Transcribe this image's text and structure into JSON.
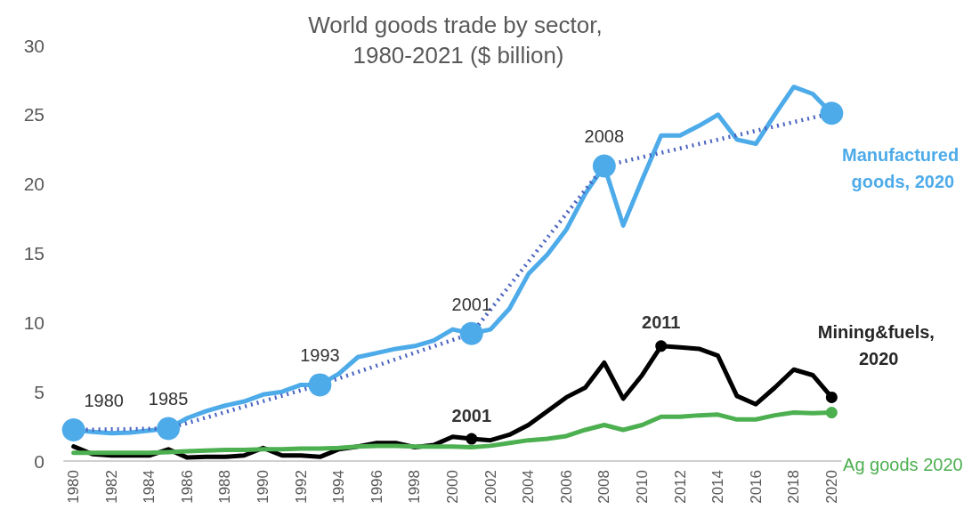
{
  "chart_data": {
    "type": "line",
    "title": "World goods trade by sector, 1980-2021 ($ billion)",
    "x": [
      1980,
      1981,
      1982,
      1983,
      1984,
      1985,
      1986,
      1987,
      1988,
      1989,
      1990,
      1991,
      1992,
      1993,
      1994,
      1995,
      1996,
      1997,
      1998,
      1999,
      2000,
      2001,
      2002,
      2003,
      2004,
      2005,
      2006,
      2007,
      2008,
      2009,
      2010,
      2011,
      2012,
      2013,
      2014,
      2015,
      2016,
      2017,
      2018,
      2019,
      2020
    ],
    "xlim": [
      1979.5,
      2020.5
    ],
    "xticks": [
      1980,
      1982,
      1984,
      1986,
      1988,
      1990,
      1992,
      1994,
      1996,
      1998,
      2000,
      2002,
      2004,
      2006,
      2008,
      2010,
      2012,
      2014,
      2016,
      2018,
      2020
    ],
    "ylim": [
      0,
      30
    ],
    "yticks": [
      0,
      5,
      10,
      15,
      20,
      25,
      30
    ],
    "grid": false,
    "marker": "none",
    "line_style": "solid",
    "series": [
      {
        "color": "#4eabe9",
        "values": [
          2.25,
          2.1,
          2.0,
          2.05,
          2.2,
          2.35,
          3.1,
          3.6,
          4.0,
          4.3,
          4.8,
          5.0,
          5.5,
          5.5,
          6.3,
          7.5,
          7.8,
          8.1,
          8.3,
          8.7,
          9.5,
          9.2,
          9.5,
          11.0,
          13.5,
          14.9,
          16.7,
          19.3,
          21.3,
          17.0,
          20.3,
          23.5,
          23.5,
          24.2,
          25.0,
          23.2,
          22.9,
          25.0,
          27.0,
          26.5,
          25.1
        ]
      },
      {
        "color": "#000000",
        "values": [
          1.05,
          0.5,
          0.4,
          0.4,
          0.4,
          0.85,
          0.25,
          0.3,
          0.3,
          0.4,
          0.95,
          0.4,
          0.4,
          0.3,
          0.85,
          1.05,
          1.3,
          1.3,
          1.0,
          1.15,
          1.75,
          1.6,
          1.5,
          1.9,
          2.6,
          3.6,
          4.6,
          5.3,
          7.1,
          4.5,
          6.2,
          8.3,
          8.2,
          8.1,
          7.6,
          4.7,
          4.1,
          5.3,
          6.6,
          6.2,
          4.6
        ]
      },
      {
        "color": "#4caf50",
        "values": [
          0.6,
          0.6,
          0.6,
          0.6,
          0.6,
          0.65,
          0.7,
          0.75,
          0.8,
          0.8,
          0.85,
          0.85,
          0.9,
          0.9,
          0.95,
          1.05,
          1.1,
          1.1,
          1.05,
          1.05,
          1.05,
          1.0,
          1.1,
          1.3,
          1.5,
          1.6,
          1.8,
          2.25,
          2.6,
          2.25,
          2.6,
          3.2,
          3.2,
          3.3,
          3.35,
          3.0,
          3.0,
          3.3,
          3.5,
          3.45,
          3.5
        ]
      },
      {
        "type": "line",
        "line_style": "dotted",
        "color": "#4a63c0",
        "x": [
          1980,
          1985,
          1993,
          2001,
          2008,
          2020
        ],
        "values": [
          2.25,
          2.35,
          5.5,
          9.2,
          21.3,
          25.1
        ]
      },
      {
        "type": "scatter",
        "marker": "circle",
        "color": "#4eabe9",
        "x": [
          1980,
          1985,
          1993,
          2001,
          2008,
          2020
        ],
        "values": [
          2.25,
          2.35,
          5.5,
          9.2,
          21.3,
          25.1
        ]
      },
      {
        "type": "scatter",
        "marker": "circle",
        "color": "#000000",
        "x": [
          2001,
          2011,
          2020
        ],
        "values": [
          1.6,
          8.3,
          4.6
        ]
      },
      {
        "type": "scatter",
        "marker": "circle",
        "color": "#4caf50",
        "x": [
          2020
        ],
        "values": [
          3.5
        ]
      }
    ],
    "annotations": [
      {
        "text": "1980",
        "x": 1980,
        "y": 2.25
      },
      {
        "text": "1985",
        "x": 1985,
        "y": 2.35
      },
      {
        "text": "1993",
        "x": 1993,
        "y": 5.5
      },
      {
        "text": "2001",
        "x": 2001,
        "y": 9.2
      },
      {
        "text": "2008",
        "x": 2008,
        "y": 21.3
      },
      {
        "text": "Manufactured goods, 2020",
        "x": 2020,
        "y": 25.1
      },
      {
        "text": "2001",
        "x": 2001,
        "y": 1.6
      },
      {
        "text": "2011",
        "x": 2011,
        "y": 8.3
      },
      {
        "text": "Mining&fuels, 2020",
        "x": 2020,
        "y": 4.6
      },
      {
        "text": "Ag goods 2020",
        "x": 2020,
        "y": 3.5
      }
    ]
  }
}
